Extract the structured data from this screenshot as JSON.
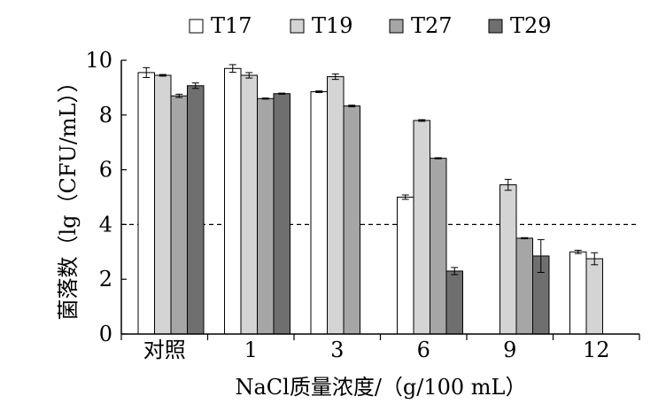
{
  "chart_data": {
    "type": "bar",
    "title": "",
    "xlabel": "NaCl质量浓度/（g/100 mL）",
    "ylabel": "菌落数（lg（CFU/mL））",
    "ylim": [
      0,
      10
    ],
    "yticks": [
      0,
      2,
      4,
      6,
      8,
      10
    ],
    "grid": false,
    "legend_position": "top",
    "reference_line": {
      "y": 4,
      "style": "dashed"
    },
    "categories": [
      "对照",
      "1",
      "3",
      "6",
      "9",
      "12"
    ],
    "series": [
      {
        "name": "T17",
        "color": "#ffffff",
        "values": [
          9.55,
          9.7,
          8.85,
          5.0,
          null,
          3.0
        ],
        "errors": [
          0.18,
          0.14,
          0.03,
          0.08,
          null,
          0.06
        ]
      },
      {
        "name": "T19",
        "color": "#d4d4d4",
        "values": [
          9.45,
          9.45,
          9.4,
          7.8,
          5.45,
          2.75
        ],
        "errors": [
          0.03,
          0.1,
          0.1,
          0.03,
          0.2,
          0.22
        ]
      },
      {
        "name": "T27",
        "color": "#a6a6a6",
        "values": [
          8.7,
          8.6,
          8.33,
          6.42,
          3.5,
          null
        ],
        "errors": [
          0.06,
          0.02,
          0.03,
          0.02,
          0.02,
          null
        ]
      },
      {
        "name": "T29",
        "color": "#6f6f6f",
        "values": [
          9.07,
          8.78,
          null,
          2.3,
          2.85,
          null
        ],
        "errors": [
          0.1,
          0.02,
          null,
          0.13,
          0.6,
          null
        ]
      }
    ]
  }
}
